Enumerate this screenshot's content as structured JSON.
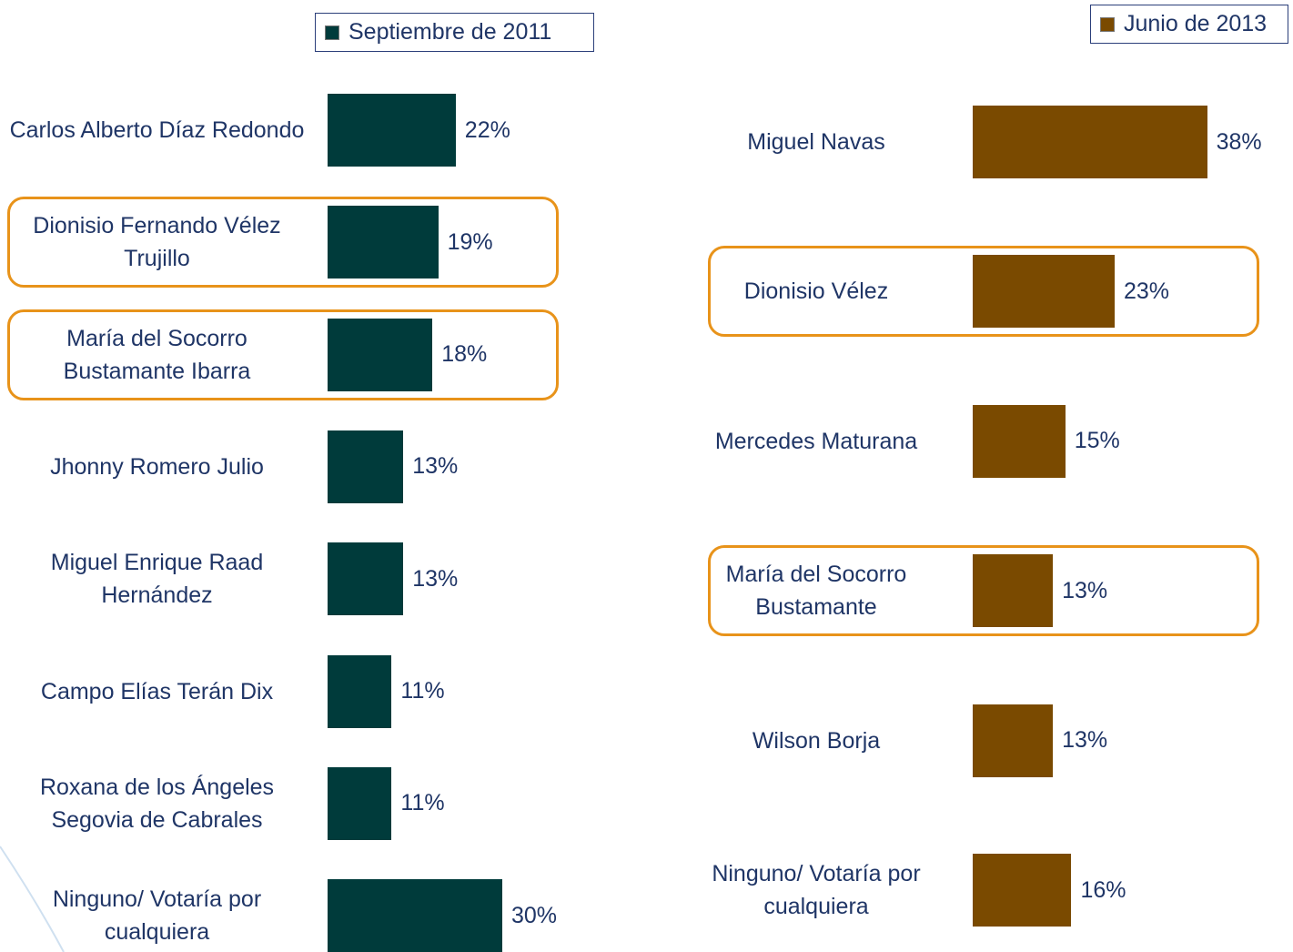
{
  "chart_data": [
    {
      "type": "bar",
      "orientation": "horizontal",
      "legend": "Septiembre de 2011",
      "color": "#003b3b",
      "categories": [
        "Carlos Alberto Díaz Redondo",
        "Dionisio Fernando Vélez Trujillo",
        "María del Socorro Bustamante Ibarra",
        "Jhonny Romero Julio",
        "Miguel Enrique Raad Hernández",
        "Campo Elías Terán Dix",
        "Roxana de los Ángeles Segovia de Cabrales",
        "Ninguno/ Votaría por cualquiera"
      ],
      "values": [
        22,
        19,
        18,
        13,
        13,
        11,
        11,
        30
      ],
      "value_labels": [
        "22%",
        "19%",
        "18%",
        "13%",
        "13%",
        "11%",
        "11%",
        "30%"
      ],
      "highlighted": [
        1,
        2
      ]
    },
    {
      "type": "bar",
      "orientation": "horizontal",
      "legend": "Junio de 2013",
      "color": "#7a4a00",
      "categories": [
        "Miguel Navas",
        "Dionisio Vélez",
        "Mercedes Maturana",
        "María del Socorro Bustamante",
        "Wilson Borja",
        "Ninguno/ Votaría por cualquiera"
      ],
      "values": [
        38,
        23,
        15,
        13,
        13,
        16
      ],
      "value_labels": [
        "38%",
        "23%",
        "15%",
        "13%",
        "13%",
        "16%"
      ],
      "highlighted": [
        1,
        3
      ]
    }
  ]
}
